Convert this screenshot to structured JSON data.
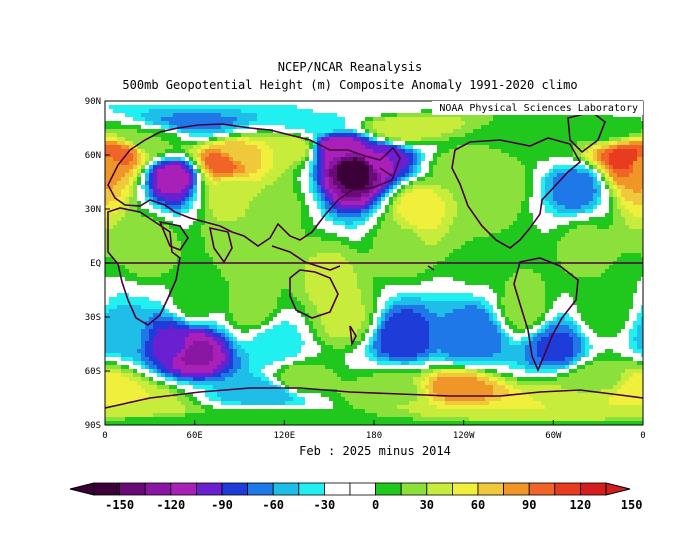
{
  "title_line1": "NCEP/NCAR Reanalysis",
  "title_line2": "500mb Geopotential Height (m) Composite Anomaly 1991-2020 climo",
  "credit": "NOAA Physical Sciences Laboratory",
  "subtitle": "Feb : 2025 minus 2014",
  "lat_labels": [
    "90N",
    "60N",
    "30N",
    "EQ",
    "30S",
    "60S",
    "90S"
  ],
  "lon_labels": [
    "0",
    "60E",
    "120E",
    "180",
    "120W",
    "60W",
    "0"
  ],
  "colorbar": {
    "tick_labels": [
      "-150",
      "-120",
      "-90",
      "-60",
      "-30",
      "0",
      "30",
      "60",
      "90",
      "120",
      "150"
    ],
    "colors": [
      "#3b0038",
      "#6a0a78",
      "#8a16a4",
      "#a820b8",
      "#6a20d0",
      "#1e3cd8",
      "#1e78e8",
      "#1ebee8",
      "#20f0f0",
      "#ffffff",
      "#ffffff",
      "#20c81e",
      "#8ce03c",
      "#c8ec3c",
      "#f0f03c",
      "#f0c83c",
      "#f09628",
      "#f06428",
      "#e83c1e",
      "#d21e1e"
    ],
    "min_color": "#3b0038",
    "max_color": "#d21e1e"
  },
  "anomaly_field": [
    {
      "lon": 10,
      "lat": 60,
      "v": 110
    },
    {
      "lon": 0,
      "lat": 55,
      "v": 90
    },
    {
      "lon": 45,
      "lat": 48,
      "v": -100
    },
    {
      "lon": 30,
      "lat": 68,
      "v": 30
    },
    {
      "lon": 62,
      "lat": 78,
      "v": -50
    },
    {
      "lon": 80,
      "lat": 56,
      "v": 120
    },
    {
      "lon": 88,
      "lat": 60,
      "v": 80
    },
    {
      "lon": 125,
      "lat": 65,
      "v": 60
    },
    {
      "lon": 140,
      "lat": 78,
      "v": -20
    },
    {
      "lon": 168,
      "lat": 52,
      "v": -150
    },
    {
      "lon": 155,
      "lat": 65,
      "v": -100
    },
    {
      "lon": 185,
      "lat": 58,
      "v": -90
    },
    {
      "lon": 210,
      "lat": 30,
      "v": 70
    },
    {
      "lon": 200,
      "lat": 75,
      "v": 60
    },
    {
      "lon": 240,
      "lat": 52,
      "v": 40
    },
    {
      "lon": 262,
      "lat": 45,
      "v": 40
    },
    {
      "lon": 295,
      "lat": 70,
      "v": 20
    },
    {
      "lon": 315,
      "lat": 42,
      "v": -55
    },
    {
      "lon": 350,
      "lat": 58,
      "v": 130
    },
    {
      "lon": 335,
      "lat": 75,
      "v": 20
    },
    {
      "lon": 85,
      "lat": 40,
      "v": 50
    },
    {
      "lon": 110,
      "lat": 30,
      "v": 40
    },
    {
      "lon": 95,
      "lat": 10,
      "v": 40
    },
    {
      "lon": 30,
      "lat": 10,
      "v": 40
    },
    {
      "lon": 200,
      "lat": 10,
      "v": 40
    },
    {
      "lon": 250,
      "lat": 5,
      "v": 30
    },
    {
      "lon": 320,
      "lat": 10,
      "v": 35
    },
    {
      "lon": 150,
      "lat": -10,
      "v": 50
    },
    {
      "lon": 60,
      "lat": -20,
      "v": 30
    },
    {
      "lon": 100,
      "lat": -25,
      "v": 40
    },
    {
      "lon": 115,
      "lat": -45,
      "v": -30
    },
    {
      "lon": 60,
      "lat": -50,
      "v": -110
    },
    {
      "lon": 45,
      "lat": -45,
      "v": -80
    },
    {
      "lon": 10,
      "lat": -40,
      "v": -40
    },
    {
      "lon": 200,
      "lat": -42,
      "v": -75
    },
    {
      "lon": 248,
      "lat": -40,
      "v": -60
    },
    {
      "lon": 240,
      "lat": -45,
      "v": -50
    },
    {
      "lon": 302,
      "lat": -47,
      "v": -65
    },
    {
      "lon": 235,
      "lat": -70,
      "v": 100
    },
    {
      "lon": 195,
      "lat": -72,
      "v": 40
    },
    {
      "lon": 330,
      "lat": -65,
      "v": 40
    },
    {
      "lon": 335,
      "lat": -25,
      "v": 30
    },
    {
      "lon": 0,
      "lat": -70,
      "v": 70
    },
    {
      "lon": 15,
      "lat": -78,
      "v": 60
    },
    {
      "lon": 105,
      "lat": -72,
      "v": -45
    },
    {
      "lon": 130,
      "lat": -65,
      "v": 40
    },
    {
      "lon": 160,
      "lat": -30,
      "v": 50
    },
    {
      "lon": 280,
      "lat": -25,
      "v": 40
    },
    {
      "lon": 300,
      "lat": -80,
      "v": 60
    },
    {
      "lon": 100,
      "lat": -88,
      "v": 20
    }
  ]
}
